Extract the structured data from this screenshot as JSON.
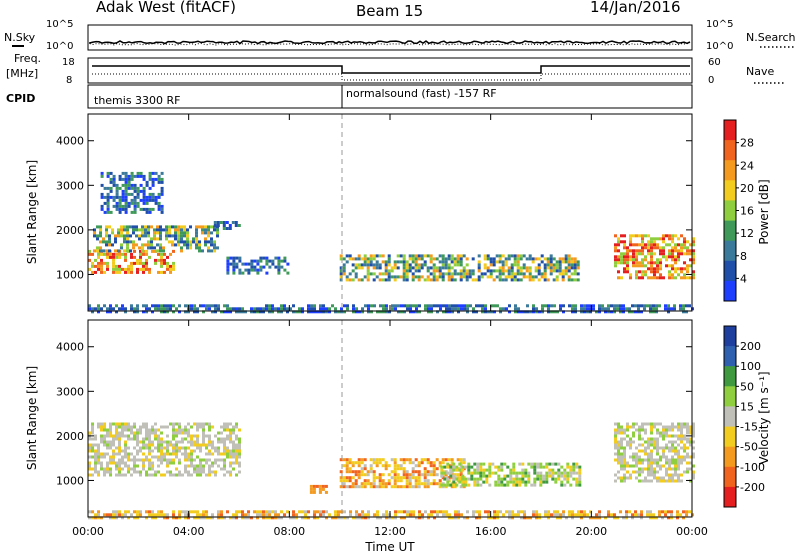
{
  "header": {
    "site": "Adak West (fitACF)",
    "beam": "Beam 15",
    "date": "14/Jan/2016"
  },
  "sky_panel": {
    "left_label": "N.Sky",
    "right_label": "N.Search",
    "left_ticks": [
      "10^5",
      "10^0"
    ],
    "right_ticks": [
      "10^5",
      "10^0"
    ]
  },
  "freq_panel": {
    "left_label_top": "Freq.",
    "left_label_unit": "[MHz]",
    "right_label": "Nave",
    "left_ticks": [
      "18",
      "8"
    ],
    "right_ticks": [
      "60",
      "0"
    ]
  },
  "cpid_panel": {
    "label": "CPID",
    "segments": [
      {
        "start": 0,
        "end": 10,
        "text": "themis 3300 RF"
      },
      {
        "start": 10,
        "end": 24,
        "text": "normalsound (fast) -157 RF"
      }
    ]
  },
  "colors": {
    "power_scale": [
      "#1f3fff",
      "#1f4fa8",
      "#3b7a9a",
      "#3f9a5a",
      "#8fcf3f",
      "#f2cc1f",
      "#f39a1f",
      "#f0641f",
      "#e51f1f"
    ],
    "velocity_scale": [
      "#e51f1f",
      "#f0641f",
      "#f39a1f",
      "#f2cc1f",
      "#c0c0b8",
      "#8fcf3f",
      "#3f9a3f",
      "#2f5faf",
      "#1f3f9f"
    ]
  },
  "chart_data": [
    {
      "type": "heatmap",
      "title": "",
      "xlabel": "",
      "ylabel": "Slant Range [km]",
      "xlim": [
        0,
        24
      ],
      "ylim": [
        180,
        4600
      ],
      "yticks": [
        "1000",
        "2000",
        "3000",
        "4000"
      ],
      "ytick_values": [
        1000,
        2000,
        3000,
        4000
      ],
      "colorbar": {
        "label": "Power [dB]",
        "ticks": [
          "4",
          "8",
          "12",
          "16",
          "20",
          "24",
          "28"
        ],
        "range": [
          0,
          30
        ]
      },
      "regions": [
        {
          "t0": 0.0,
          "t1": 3.4,
          "r0": 1050,
          "r1": 1550,
          "level": "high"
        },
        {
          "t0": 0.2,
          "t1": 5.2,
          "r0": 1500,
          "r1": 2100,
          "level": "mid"
        },
        {
          "t0": 0.5,
          "t1": 3.0,
          "r0": 2400,
          "r1": 3300,
          "level": "low"
        },
        {
          "t0": 5.0,
          "t1": 6.2,
          "r0": 2000,
          "r1": 2200,
          "level": "low"
        },
        {
          "t0": 5.5,
          "t1": 8.0,
          "r0": 1000,
          "r1": 1400,
          "level": "low"
        },
        {
          "t0": 10.0,
          "t1": 19.5,
          "r0": 850,
          "r1": 1450,
          "level": "mid"
        },
        {
          "t0": 20.9,
          "t1": 24.0,
          "r0": 900,
          "r1": 1900,
          "level": "high"
        },
        {
          "t0": 0.0,
          "t1": 24.0,
          "r0": 190,
          "r1": 330,
          "level": "low"
        }
      ]
    },
    {
      "type": "heatmap",
      "title": "",
      "xlabel": "Time UT",
      "ylabel": "Slant Range [km]",
      "xlim": [
        0,
        24
      ],
      "ylim": [
        180,
        4600
      ],
      "xticks": [
        "00:00",
        "04:00",
        "08:00",
        "12:00",
        "16:00",
        "20:00",
        "00:00"
      ],
      "xtick_values": [
        0,
        4,
        8,
        12,
        16,
        20,
        24
      ],
      "yticks": [
        "1000",
        "2000",
        "3000",
        "4000"
      ],
      "ytick_values": [
        1000,
        2000,
        3000,
        4000
      ],
      "colorbar": {
        "label": "Velocity [m s⁻¹]",
        "ticks": [
          "200",
          "100",
          "50",
          "15",
          "-15",
          "-50",
          "-100",
          "-200"
        ],
        "range": [
          -200,
          200
        ]
      },
      "regions": [
        {
          "t0": 0.0,
          "t1": 6.0,
          "r0": 1100,
          "r1": 2300,
          "level": "gray"
        },
        {
          "t0": 8.7,
          "t1": 9.5,
          "r0": 700,
          "r1": 900,
          "level": "orange"
        },
        {
          "t0": 10.0,
          "t1": 15.0,
          "r0": 850,
          "r1": 1500,
          "level": "yellow"
        },
        {
          "t0": 14.0,
          "t1": 19.5,
          "r0": 900,
          "r1": 1400,
          "level": "green"
        },
        {
          "t0": 20.9,
          "t1": 24.0,
          "r0": 1000,
          "r1": 2300,
          "level": "gray"
        },
        {
          "t0": 0.0,
          "t1": 24.0,
          "r0": 190,
          "r1": 330,
          "level": "yellow"
        }
      ]
    }
  ]
}
